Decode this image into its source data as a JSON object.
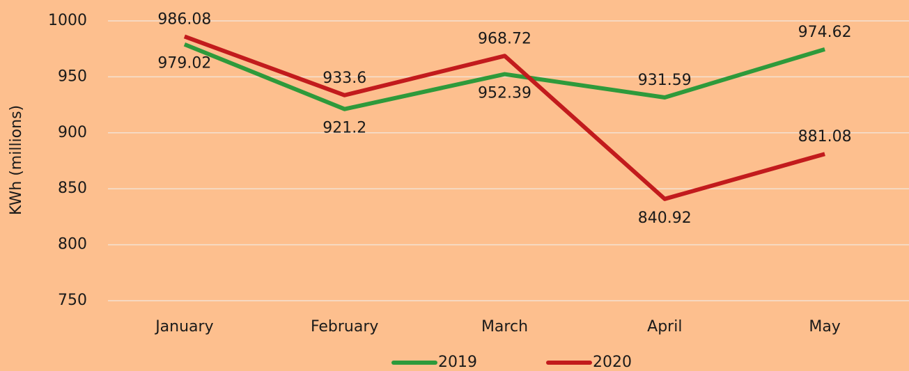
{
  "chart_data": {
    "type": "line",
    "y_label": "KWh (millions)",
    "categories": [
      "January",
      "February",
      "March",
      "April",
      "May"
    ],
    "series": [
      {
        "name": "2019",
        "color": "#2e9a3b",
        "values": [
          979.02,
          921.2,
          952.39,
          931.59,
          974.62
        ]
      },
      {
        "name": "2020",
        "color": "#c21b1d",
        "values": [
          986.08,
          933.6,
          968.72,
          840.92,
          881.08
        ]
      }
    ],
    "ylim": [
      750,
      1000
    ],
    "yticks": [
      750,
      800,
      850,
      900,
      950,
      1000
    ],
    "grid": true,
    "legend": "bottom"
  }
}
